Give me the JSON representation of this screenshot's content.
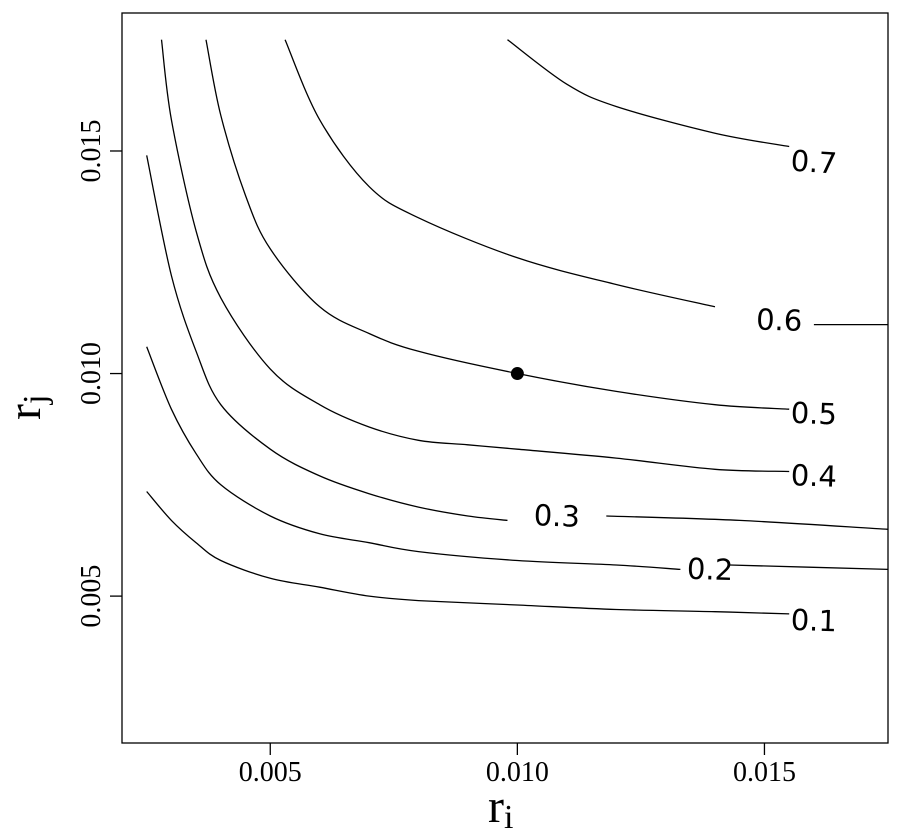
{
  "chart_data": {
    "type": "contour",
    "xlabel": "r",
    "xlabel_subscript": "i",
    "ylabel": "r",
    "ylabel_subscript": "j",
    "xlim": [
      0.002,
      0.0175
    ],
    "ylim": [
      0.0017,
      0.0181
    ],
    "x_ticks": [
      0.005,
      0.01,
      0.015
    ],
    "x_tick_labels": [
      "0.005",
      "0.010",
      "0.015"
    ],
    "y_ticks": [
      0.005,
      0.01,
      0.015
    ],
    "y_tick_labels": [
      "0.005",
      "0.010",
      "0.015"
    ],
    "grid": false,
    "point": {
      "x": 0.01,
      "y": 0.01
    },
    "contours": [
      {
        "level": "0.1",
        "points": [
          [
            0.0025,
            0.00735
          ],
          [
            0.003,
            0.0067
          ],
          [
            0.0035,
            0.0062
          ],
          [
            0.004,
            0.0058
          ],
          [
            0.005,
            0.0054
          ],
          [
            0.006,
            0.0052
          ],
          [
            0.007,
            0.005
          ],
          [
            0.008,
            0.0049
          ],
          [
            0.01,
            0.0048
          ],
          [
            0.012,
            0.0047
          ],
          [
            0.014,
            0.00465
          ],
          [
            0.0155,
            0.0046
          ]
        ],
        "label_x": 0.016,
        "label_y": 0.00445
      },
      {
        "level": "0.2",
        "points": [
          [
            0.0025,
            0.0106
          ],
          [
            0.003,
            0.0092
          ],
          [
            0.0035,
            0.0082
          ],
          [
            0.004,
            0.0075
          ],
          [
            0.005,
            0.0068
          ],
          [
            0.006,
            0.0064
          ],
          [
            0.007,
            0.0062
          ],
          [
            0.008,
            0.006
          ],
          [
            0.01,
            0.0058
          ],
          [
            0.012,
            0.0057
          ],
          [
            0.0133,
            0.0056
          ]
        ],
        "extra_points": [
          [
            0.0143,
            0.0057
          ],
          [
            0.0175,
            0.0056
          ]
        ],
        "label_x": 0.0139,
        "label_y": 0.0056
      },
      {
        "level": "0.3",
        "points": [
          [
            0.0025,
            0.0149
          ],
          [
            0.003,
            0.0122
          ],
          [
            0.0035,
            0.0105
          ],
          [
            0.004,
            0.0093
          ],
          [
            0.005,
            0.0083
          ],
          [
            0.006,
            0.0077
          ],
          [
            0.007,
            0.0073
          ],
          [
            0.008,
            0.007
          ],
          [
            0.009,
            0.0068
          ],
          [
            0.0098,
            0.0067
          ]
        ],
        "extra_points": [
          [
            0.0118,
            0.0068
          ],
          [
            0.0145,
            0.0067
          ],
          [
            0.0175,
            0.0065
          ]
        ],
        "label_x": 0.0108,
        "label_y": 0.0068
      },
      {
        "level": "0.4",
        "points": [
          [
            0.0028,
            0.0175
          ],
          [
            0.003,
            0.0157
          ],
          [
            0.0035,
            0.0132
          ],
          [
            0.004,
            0.0117
          ],
          [
            0.005,
            0.0101
          ],
          [
            0.006,
            0.0093
          ],
          [
            0.007,
            0.0088
          ],
          [
            0.008,
            0.0085
          ],
          [
            0.009,
            0.0084
          ],
          [
            0.01,
            0.0083
          ],
          [
            0.012,
            0.0081
          ],
          [
            0.014,
            0.00785
          ],
          [
            0.0155,
            0.0078
          ]
        ],
        "label_x": 0.016,
        "label_y": 0.0077
      },
      {
        "level": "0.5",
        "points": [
          [
            0.0037,
            0.0175
          ],
          [
            0.004,
            0.0158
          ],
          [
            0.0045,
            0.014
          ],
          [
            0.005,
            0.0128
          ],
          [
            0.006,
            0.0115
          ],
          [
            0.007,
            0.0109
          ],
          [
            0.008,
            0.0105
          ],
          [
            0.01,
            0.01
          ],
          [
            0.012,
            0.0096
          ],
          [
            0.014,
            0.0093
          ],
          [
            0.0155,
            0.0092
          ]
        ],
        "label_x": 0.016,
        "label_y": 0.0091
      },
      {
        "level": "0.6",
        "points": [
          [
            0.0053,
            0.0175
          ],
          [
            0.006,
            0.0157
          ],
          [
            0.007,
            0.0142
          ],
          [
            0.008,
            0.0135
          ],
          [
            0.01,
            0.0126
          ],
          [
            0.012,
            0.012
          ],
          [
            0.014,
            0.0115
          ]
        ],
        "extra_points": [
          [
            0.016,
            0.0111
          ],
          [
            0.0175,
            0.0111
          ]
        ],
        "label_x": 0.0153,
        "label_y": 0.0112
      },
      {
        "level": "0.7",
        "points": [
          [
            0.0098,
            0.0175
          ],
          [
            0.011,
            0.0165
          ],
          [
            0.012,
            0.016
          ],
          [
            0.014,
            0.0154
          ],
          [
            0.0155,
            0.0151
          ]
        ],
        "label_x": 0.016,
        "label_y": 0.01475
      }
    ]
  }
}
